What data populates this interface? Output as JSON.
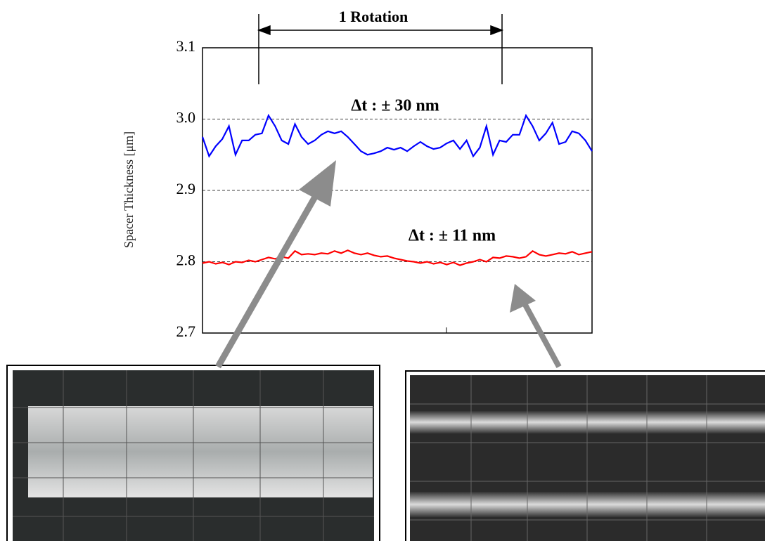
{
  "chart_data": {
    "type": "line",
    "ylabel": "Spacer Thickness  [μm]",
    "annotations": [
      "1 Rotation",
      "Δt : ± 30 nm",
      "Δt : ± 11 nm"
    ],
    "ylim": [
      2.7,
      3.1
    ],
    "yticks": [
      {
        "value": 2.7,
        "label": "2.7"
      },
      {
        "value": 2.8,
        "label": "2.8"
      },
      {
        "value": 2.9,
        "label": "2.9"
      },
      {
        "value": 3,
        "label": "3.0"
      },
      {
        "value": 3.1,
        "label": "3.1"
      }
    ],
    "grid": true,
    "series": [
      {
        "color": "#0000ff",
        "values": [
          2.975,
          2.948,
          2.962,
          2.972,
          2.99,
          2.95,
          2.97,
          2.97,
          2.978,
          2.98,
          3.005,
          2.99,
          2.97,
          2.965,
          2.993,
          2.975,
          2.965,
          2.97,
          2.978,
          2.983,
          2.98,
          2.983,
          2.975,
          2.965,
          2.955,
          2.95,
          2.952,
          2.955,
          2.96,
          2.957,
          2.96,
          2.955,
          2.962,
          2.968,
          2.962,
          2.958,
          2.96,
          2.966,
          2.97,
          2.958,
          2.97,
          2.948,
          2.96,
          2.99,
          2.95,
          2.97,
          2.968,
          2.978,
          2.978,
          3.005,
          2.99,
          2.97,
          2.98,
          2.995,
          2.965,
          2.968,
          2.983,
          2.98,
          2.97,
          2.955
        ]
      },
      {
        "color": "#ff0000",
        "values": [
          2.798,
          2.8,
          2.797,
          2.799,
          2.796,
          2.8,
          2.799,
          2.802,
          2.8,
          2.803,
          2.806,
          2.804,
          2.807,
          2.805,
          2.815,
          2.81,
          2.811,
          2.81,
          2.812,
          2.811,
          2.815,
          2.812,
          2.816,
          2.812,
          2.81,
          2.812,
          2.809,
          2.807,
          2.808,
          2.805,
          2.803,
          2.801,
          2.8,
          2.798,
          2.8,
          2.797,
          2.799,
          2.796,
          2.799,
          2.795,
          2.798,
          2.8,
          2.803,
          2.8,
          2.806,
          2.805,
          2.808,
          2.807,
          2.805,
          2.807,
          2.815,
          2.81,
          2.808,
          2.81,
          2.812,
          2.811,
          2.814,
          2.81,
          2.812,
          2.814
        ]
      }
    ]
  }
}
